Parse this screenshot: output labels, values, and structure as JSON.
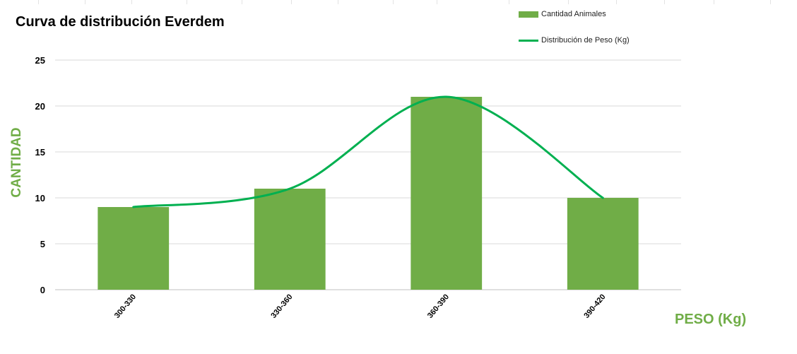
{
  "chart_data": {
    "type": "bar",
    "title": "Curva de distribución Everdem",
    "xlabel": "PESO (Kg)",
    "ylabel": "CANTIDAD",
    "categories": [
      "300-330",
      "330-360",
      "360-390",
      "390-420"
    ],
    "series": [
      {
        "name": "Cantidad Animales",
        "kind": "bar",
        "values": [
          9,
          11,
          21,
          10
        ],
        "color": "#70ad47"
      },
      {
        "name": "Distribución de Peso (Kg)",
        "kind": "line",
        "smooth": true,
        "values": [
          9,
          11,
          21,
          10
        ],
        "color": "#00b050"
      }
    ],
    "ylim": [
      0,
      25
    ],
    "yticks": [
      0,
      5,
      10,
      15,
      20,
      25
    ],
    "grid": true,
    "legend_position": "top-right",
    "label_color": "#70ad47"
  }
}
